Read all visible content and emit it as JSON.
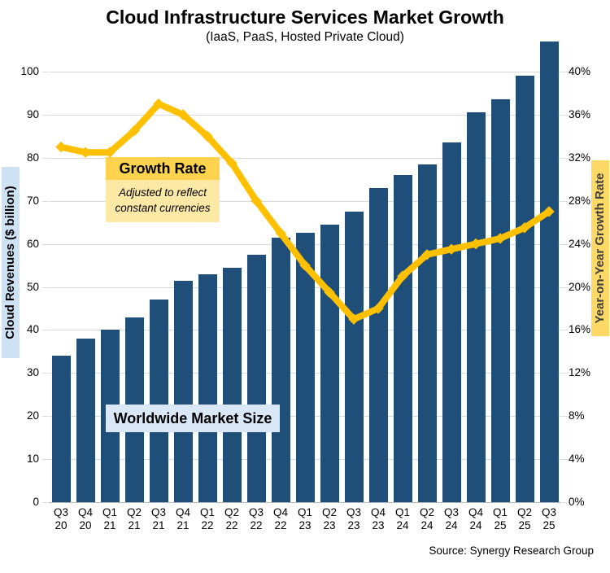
{
  "header": {
    "title": "Cloud Infrastructure Services Market Growth",
    "subtitle": "(IaaS, PaaS, Hosted Private Cloud)"
  },
  "annotations": {
    "growth_rate_label": "Growth Rate",
    "growth_rate_note_line1": "Adjusted to reflect",
    "growth_rate_note_line2": "constant currencies",
    "market_size_label": "Worldwide Market Size"
  },
  "footer": {
    "source": "Source: Synergy Research Group"
  },
  "colors": {
    "bar": "#1F4E79",
    "line": "#FFC000",
    "grid": "#D9D9D9",
    "growth_box_bg": "#FFD34D",
    "growth_note_bg": "#FCE9A6",
    "market_box_bg": "#D9E7F6",
    "left_label_bg": "#CFE2F3",
    "right_label_bg": "#FFD966"
  },
  "chart_data": {
    "type": "bar",
    "combo_with_line": true,
    "title": "Cloud Infrastructure Services Market Growth",
    "subtitle": "(IaaS, PaaS, Hosted Private Cloud)",
    "categories": [
      "Q3 20",
      "Q4 20",
      "Q1 21",
      "Q2 21",
      "Q3 21",
      "Q4 21",
      "Q1 22",
      "Q2 22",
      "Q3 22",
      "Q4 22",
      "Q1 23",
      "Q2 23",
      "Q3 23",
      "Q4 23",
      "Q1 24",
      "Q2 24",
      "Q3 24",
      "Q4 24",
      "Q1 25",
      "Q2 25",
      "Q3 25"
    ],
    "series": [
      {
        "name": "Worldwide Market Size",
        "type": "bar",
        "axis": "left",
        "values": [
          34,
          38,
          40,
          43,
          47,
          51.5,
          53,
          54.5,
          57.5,
          61.5,
          62.5,
          64.5,
          67.5,
          73,
          76,
          78.5,
          83.5,
          90.5,
          93.5,
          99,
          107
        ]
      },
      {
        "name": "Growth Rate (adjusted to reflect constant currencies)",
        "type": "line",
        "axis": "right",
        "values": [
          33,
          32.5,
          32.5,
          34.5,
          37,
          36,
          34,
          31.5,
          28,
          25,
          22,
          19.5,
          17,
          18,
          21,
          23,
          23.5,
          24,
          24.5,
          25.5,
          27
        ]
      }
    ],
    "left_axis": {
      "label": "Cloud Revenues ($ billion)",
      "min": 0,
      "max": 100,
      "step": 10
    },
    "right_axis": {
      "label": "Year-on-Year Growth Rate",
      "min": 0,
      "max": 40,
      "step": 4,
      "suffix": "%"
    },
    "grid": true,
    "legend": false
  }
}
